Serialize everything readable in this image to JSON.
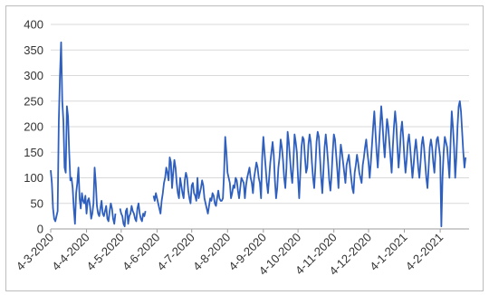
{
  "chart_data": {
    "type": "line",
    "title": "",
    "xlabel": "",
    "ylabel": "",
    "ylim": [
      0,
      400
    ],
    "y_ticks": [
      0,
      50,
      100,
      150,
      200,
      250,
      300,
      350,
      400
    ],
    "x_tick_labels": [
      "4-3-2020",
      "4-4-2020",
      "4-5-2020",
      "4-6-2020",
      "4-7-2020",
      "4-8-2020",
      "4-9-2020",
      "4-10-2020",
      "4-11-2020",
      "4-12-2020",
      "4-1-2021",
      "4-2-2021"
    ],
    "grid": true,
    "legend": "none",
    "series": [
      {
        "color": "#2e5fbf",
        "x_start": "2020-03-04",
        "x_end": "2021-03-01",
        "segments": [
          {
            "start_index": 0,
            "values": [
              115,
              90,
              40,
              20,
              15,
              25,
              35,
              210,
              300,
              365,
              250,
              210,
              120,
              110,
              240,
              220,
              150,
              95,
              100,
              80,
              40,
              10,
              70,
              90,
              120,
              60,
              40,
              70,
              55,
              50,
              65,
              30,
              55,
              60,
              45,
              20,
              30,
              50,
              120,
              90,
              45,
              30,
              25,
              40,
              55,
              30,
              25,
              35,
              45,
              20,
              15,
              35,
              50,
              40,
              20,
              10,
              30
            ]
          },
          {
            "start_index": 60,
            "values": [
              40,
              30,
              25,
              10,
              5,
              35,
              40,
              10,
              25,
              30,
              45,
              35,
              30,
              20,
              15,
              40,
              50,
              30,
              20,
              15,
              30,
              25,
              35
            ]
          },
          {
            "start_index": 89,
            "values": [
              65,
              55,
              70,
              60,
              50,
              40,
              30,
              55,
              70,
              90,
              100,
              120,
              110,
              95,
              140,
              130,
              80,
              110,
              135,
              120,
              90,
              70,
              60,
              100,
              85,
              70,
              60,
              95,
              110,
              100,
              75,
              60,
              50,
              85,
              90,
              70,
              65,
              55,
              100,
              60,
              70,
              80,
              95,
              85,
              60,
              50,
              40,
              30,
              45,
              60,
              55,
              70,
              65,
              50,
              45,
              60,
              75,
              60,
              55,
              55,
              60,
              110,
              180,
              150,
              110,
              100,
              90,
              60,
              70,
              85,
              80,
              100,
              95,
              75,
              60,
              80,
              100,
              95,
              90,
              60,
              85,
              100,
              110,
              120,
              100,
              90,
              70,
              100,
              115,
              130,
              120,
              100,
              90,
              60,
              140,
              180,
              150,
              120,
              90,
              70,
              100,
              130,
              150,
              170,
              145,
              95,
              60,
              80,
              120,
              140,
              175,
              160,
              135,
              100,
              80,
              120,
              190,
              170,
              140,
              110,
              90,
              130,
              185,
              170,
              150,
              100,
              60,
              110,
              160,
              180,
              175,
              140,
              110,
              120,
              165,
              185,
              170,
              130,
              100,
              80,
              120,
              170,
              190,
              180,
              140,
              100,
              70,
              115,
              160,
              185,
              160,
              130,
              95,
              75,
              105,
              150,
              185,
              175,
              145,
              115,
              80,
              130,
              165,
              150,
              130,
              110,
              90,
              125,
              135,
              145,
              120,
              100,
              80,
              70,
              110,
              125,
              145,
              130,
              110,
              100,
              90,
              125,
              140,
              160,
              175,
              150,
              130,
              100,
              130,
              165,
              200,
              230,
              190,
              150,
              120,
              160,
              200,
              240,
              210,
              170,
              140,
              180,
              215,
              200,
              170,
              140,
              110,
              160,
              200,
              230,
              205,
              160,
              120,
              150,
              190,
              210,
              180,
              140,
              110,
              135,
              170,
              185,
              160,
              130,
              100,
              125,
              155,
              175,
              150,
              120,
              100,
              130,
              165,
              180,
              160,
              130,
              100,
              80,
              120,
              160,
              175,
              160,
              130,
              110,
              150,
              175,
              180,
              160,
              140,
              5,
              100,
              150,
              180,
              170,
              160,
              130,
              100,
              170,
              230,
              200,
              160,
              100,
              140,
              200,
              240,
              250,
              230,
              190,
              150,
              120,
              140
            ]
          }
        ]
      }
    ]
  }
}
